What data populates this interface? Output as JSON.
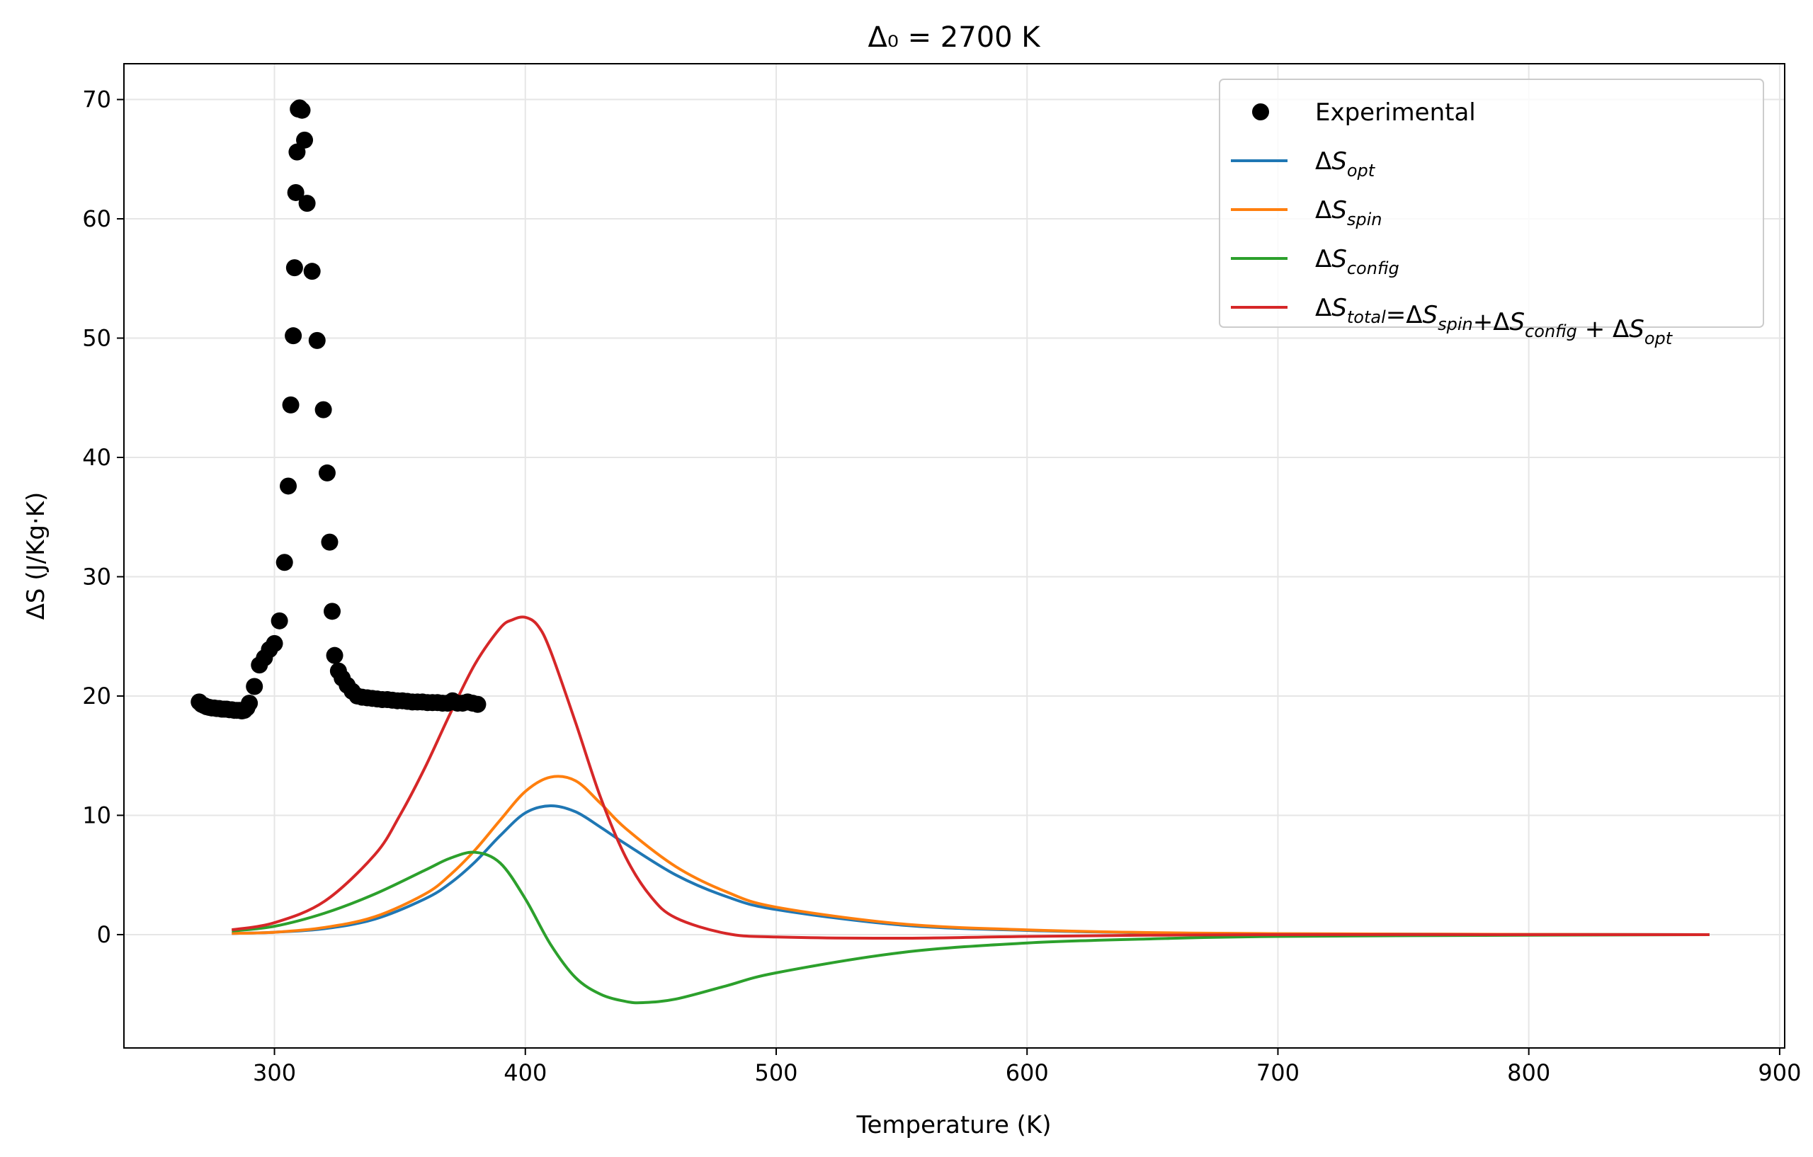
{
  "chart_data": {
    "type": "line",
    "title": "Δ₀ = 2700 K",
    "xlabel": "Temperature (K)",
    "ylabel": "ΔS (J/Kg·K)",
    "xlim": [
      240,
      902
    ],
    "ylim": [
      -9.5,
      73
    ],
    "xticks": [
      300,
      400,
      500,
      600,
      700,
      800,
      900
    ],
    "yticks": [
      0,
      10,
      20,
      30,
      40,
      50,
      60,
      70
    ],
    "grid": true,
    "legend_position": "top-right",
    "scatter": {
      "name": "Experimental",
      "color": "#000000",
      "x": [
        270,
        271,
        272,
        273,
        274,
        275,
        276,
        277,
        278,
        279,
        280,
        281,
        282,
        283,
        284,
        285,
        286,
        287,
        288,
        289,
        290,
        292,
        294,
        296,
        298,
        300,
        302,
        304,
        305.5,
        306.5,
        307.5,
        308,
        308.5,
        309,
        309.5,
        310,
        311,
        312,
        313,
        315,
        317,
        319.5,
        321,
        322,
        323,
        324,
        325.5,
        327,
        329,
        331,
        333,
        335,
        337,
        339,
        341,
        343,
        345,
        347,
        349,
        351,
        353,
        355,
        357,
        359,
        361,
        363,
        365,
        367,
        369,
        371,
        373,
        375,
        377,
        379,
        381
      ],
      "y": [
        19.5,
        19.3,
        19.2,
        19.1,
        19.05,
        19.0,
        19.0,
        18.95,
        18.95,
        18.9,
        18.9,
        18.9,
        18.85,
        18.85,
        18.8,
        18.8,
        18.8,
        18.75,
        18.8,
        19.0,
        19.4,
        20.8,
        22.6,
        23.2,
        23.9,
        24.4,
        26.3,
        31.2,
        37.6,
        44.4,
        50.2,
        55.9,
        62.2,
        65.6,
        69.2,
        69.3,
        69.1,
        66.6,
        61.3,
        55.6,
        49.8,
        44.0,
        38.7,
        32.9,
        27.1,
        23.4,
        22.1,
        21.5,
        20.9,
        20.4,
        20.0,
        19.9,
        19.85,
        19.8,
        19.75,
        19.7,
        19.7,
        19.65,
        19.6,
        19.6,
        19.55,
        19.5,
        19.5,
        19.5,
        19.45,
        19.45,
        19.45,
        19.4,
        19.4,
        19.6,
        19.4,
        19.4,
        19.5,
        19.4,
        19.3
      ]
    },
    "series": [
      {
        "name": "ΔS_opt",
        "label_base": "ΔS",
        "label_sub": "opt",
        "color": "#1f77b4",
        "x": [
          283,
          300,
          320,
          340,
          360,
          370,
          380,
          390,
          400,
          410,
          420,
          430,
          440,
          460,
          480,
          500,
          550,
          600,
          650,
          700,
          800,
          872
        ],
        "y": [
          0.1,
          0.2,
          0.5,
          1.3,
          3.0,
          4.3,
          6.1,
          8.3,
          10.2,
          10.8,
          10.3,
          9.0,
          7.6,
          5.0,
          3.2,
          2.1,
          0.8,
          0.35,
          0.15,
          0.07,
          0.02,
          0.0
        ]
      },
      {
        "name": "ΔS_spin",
        "label_base": "ΔS",
        "label_sub": "spin",
        "color": "#ff7f0e",
        "x": [
          283,
          300,
          320,
          340,
          360,
          370,
          380,
          390,
          400,
          410,
          420,
          430,
          440,
          460,
          480,
          500,
          550,
          600,
          650,
          700,
          800,
          872
        ],
        "y": [
          0.1,
          0.2,
          0.6,
          1.5,
          3.4,
          5.0,
          7.1,
          9.6,
          12.0,
          13.2,
          12.9,
          11.0,
          8.9,
          5.7,
          3.6,
          2.3,
          0.9,
          0.4,
          0.17,
          0.08,
          0.02,
          0.0
        ]
      },
      {
        "name": "ΔS_config",
        "label_base": "ΔS",
        "label_sub": "config",
        "color": "#2ca02c",
        "x": [
          283,
          300,
          320,
          340,
          360,
          370,
          380,
          390,
          400,
          410,
          420,
          430,
          440,
          447,
          460,
          480,
          500,
          550,
          600,
          650,
          700,
          800,
          872
        ],
        "y": [
          0.3,
          0.7,
          1.8,
          3.4,
          5.4,
          6.4,
          6.9,
          6.0,
          3.0,
          -0.8,
          -3.6,
          -5.0,
          -5.6,
          -5.7,
          -5.4,
          -4.3,
          -3.2,
          -1.5,
          -0.7,
          -0.35,
          -0.15,
          -0.05,
          0.0
        ]
      },
      {
        "name": "ΔS_total=ΔS_spin+ΔS_config + ΔS_opt",
        "label_base": "ΔS",
        "label_sub": "total",
        "label_rest": [
          [
            "=ΔS",
            "spin"
          ],
          [
            "+ΔS",
            "config"
          ],
          [
            " + ΔS",
            "opt"
          ]
        ],
        "color": "#d62728",
        "x": [
          283,
          300,
          320,
          340,
          350,
          360,
          370,
          380,
          390,
          395,
          400,
          405,
          410,
          420,
          430,
          440,
          450,
          460,
          480,
          500,
          550,
          600,
          650,
          700,
          800,
          872
        ],
        "y": [
          0.4,
          1.0,
          2.8,
          6.7,
          10.0,
          14.0,
          18.5,
          22.7,
          25.7,
          26.4,
          26.6,
          25.9,
          23.8,
          17.8,
          11.5,
          6.5,
          3.2,
          1.4,
          0.1,
          -0.2,
          -0.3,
          -0.15,
          -0.05,
          0.0,
          0.0,
          0.0
        ]
      }
    ]
  }
}
